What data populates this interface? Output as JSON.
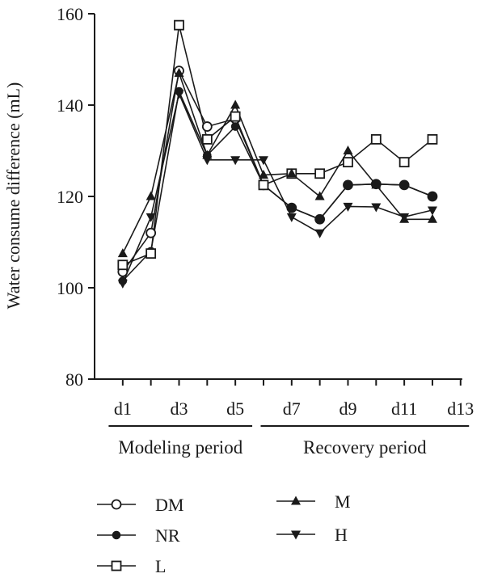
{
  "chart_data": {
    "type": "line",
    "ylabel": "Water consume difference (mL)",
    "ylim": [
      80,
      160
    ],
    "yticks": [
      80,
      100,
      120,
      140,
      160
    ],
    "xlim": [
      0,
      13
    ],
    "xticks": [
      {
        "x": 1,
        "label": "d1"
      },
      {
        "x": 3,
        "label": "d3"
      },
      {
        "x": 5,
        "label": "d5"
      },
      {
        "x": 7,
        "label": "d7"
      },
      {
        "x": 9,
        "label": "d9"
      },
      {
        "x": 11,
        "label": "d11"
      },
      {
        "x": 13,
        "label": "d13"
      }
    ],
    "x": [
      1,
      2,
      3,
      4,
      5,
      6,
      7,
      8,
      9,
      10,
      11,
      12
    ],
    "periods": [
      {
        "label": "Modeling period",
        "from": 0.5,
        "to": 5.6
      },
      {
        "label": "Recovery period",
        "from": 5.9,
        "to": 13.3
      }
    ],
    "series": [
      {
        "name": "DM",
        "marker": "circle-open",
        "values": [
          103.5,
          112,
          147.5,
          135.3,
          137,
          122.5,
          117.5,
          115,
          122.5,
          122.7,
          122.5,
          120
        ]
      },
      {
        "name": "NR",
        "marker": "circle-filled",
        "values": [
          101.5,
          108,
          143,
          129,
          135.3,
          122.5,
          117.5,
          115,
          122.5,
          122.7,
          122.5,
          120
        ]
      },
      {
        "name": "L",
        "marker": "square-open",
        "values": [
          105,
          107.5,
          157.5,
          132.5,
          137.5,
          122.5,
          125,
          125,
          127.5,
          132.5,
          127.5,
          132.5
        ]
      },
      {
        "name": "M",
        "marker": "triangle-up-filled",
        "values": [
          107.5,
          120,
          147,
          129,
          140,
          124.7,
          125,
          120,
          130,
          122.5,
          115,
          115
        ]
      },
      {
        "name": "H",
        "marker": "triangle-down-filled",
        "values": [
          101,
          115.5,
          142.5,
          128,
          128,
          128,
          115.5,
          112,
          117.8,
          117.7,
          115.5,
          117
        ]
      }
    ],
    "legend_placement": "bottom",
    "grid": false
  }
}
